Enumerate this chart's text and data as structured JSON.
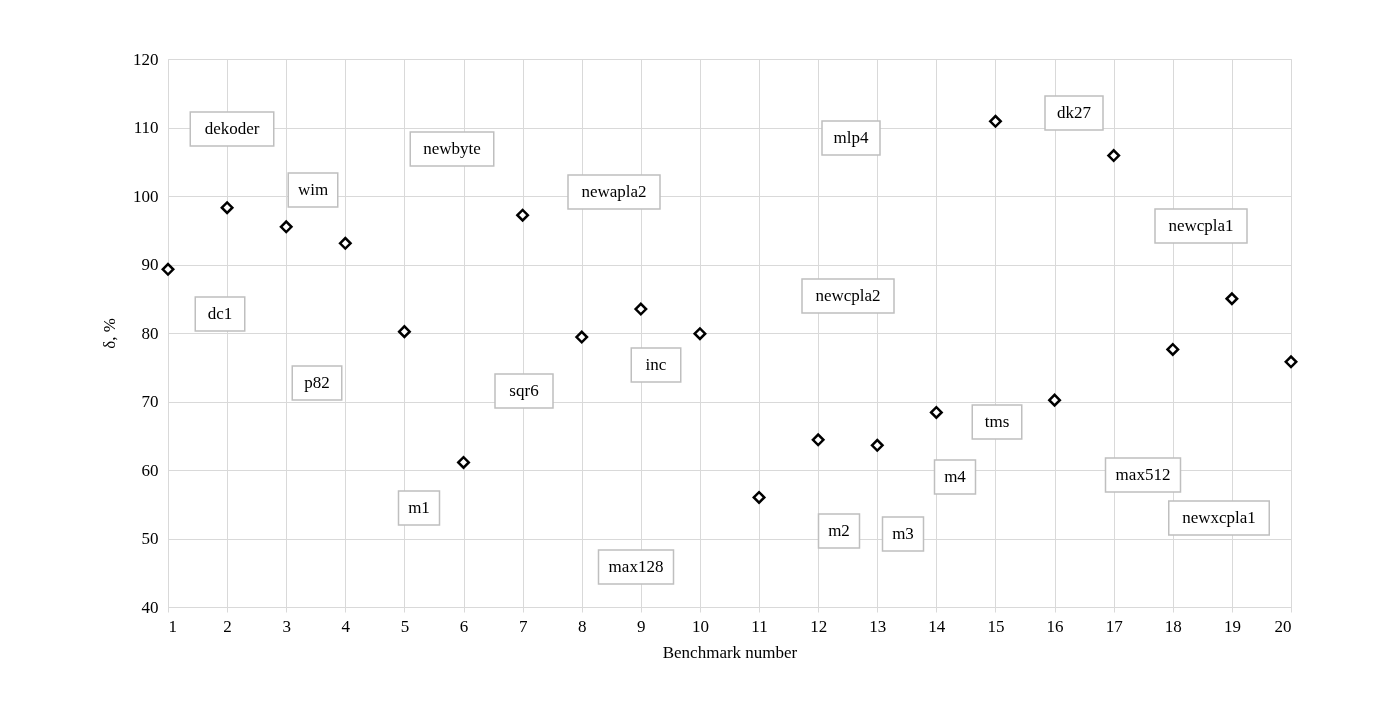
{
  "chart_data": {
    "type": "scatter",
    "xlabel": "Benchmark number",
    "ylabel": "δ, %",
    "x": [
      1,
      2,
      3,
      4,
      5,
      6,
      7,
      8,
      9,
      10,
      11,
      12,
      13,
      14,
      15,
      16,
      17,
      18,
      19,
      20
    ],
    "series": [
      {
        "color": "#000000",
        "values": [
          89.3,
          98.3,
          95.5,
          93.1,
          80.2,
          61.1,
          97.2,
          79.4,
          83.5,
          79.9,
          56.0,
          64.4,
          63.6,
          68.4,
          110.9,
          70.2,
          105.9,
          77.6,
          85.0,
          75.8
        ]
      }
    ],
    "xlim": [
      1,
      20
    ],
    "xticks": [
      1,
      2,
      3,
      4,
      5,
      6,
      7,
      8,
      9,
      10,
      11,
      12,
      13,
      14,
      15,
      16,
      17,
      18,
      19,
      20
    ],
    "ylim": [
      40,
      120
    ],
    "yticks": [
      40,
      50,
      60,
      70,
      80,
      90,
      100,
      110,
      120
    ],
    "grid": true,
    "marker": "diamond",
    "legend": false,
    "annotations": [
      "dekoder",
      "dc1",
      "wim",
      "p82",
      "newbyte",
      "m1",
      "newapla2",
      "sqr6",
      "inc",
      "max128",
      "mlp4",
      "newcpla2",
      "m2",
      "m3",
      "m4",
      "tms",
      "dk27",
      "newcpla1",
      "max512",
      "newxcpla1"
    ]
  }
}
